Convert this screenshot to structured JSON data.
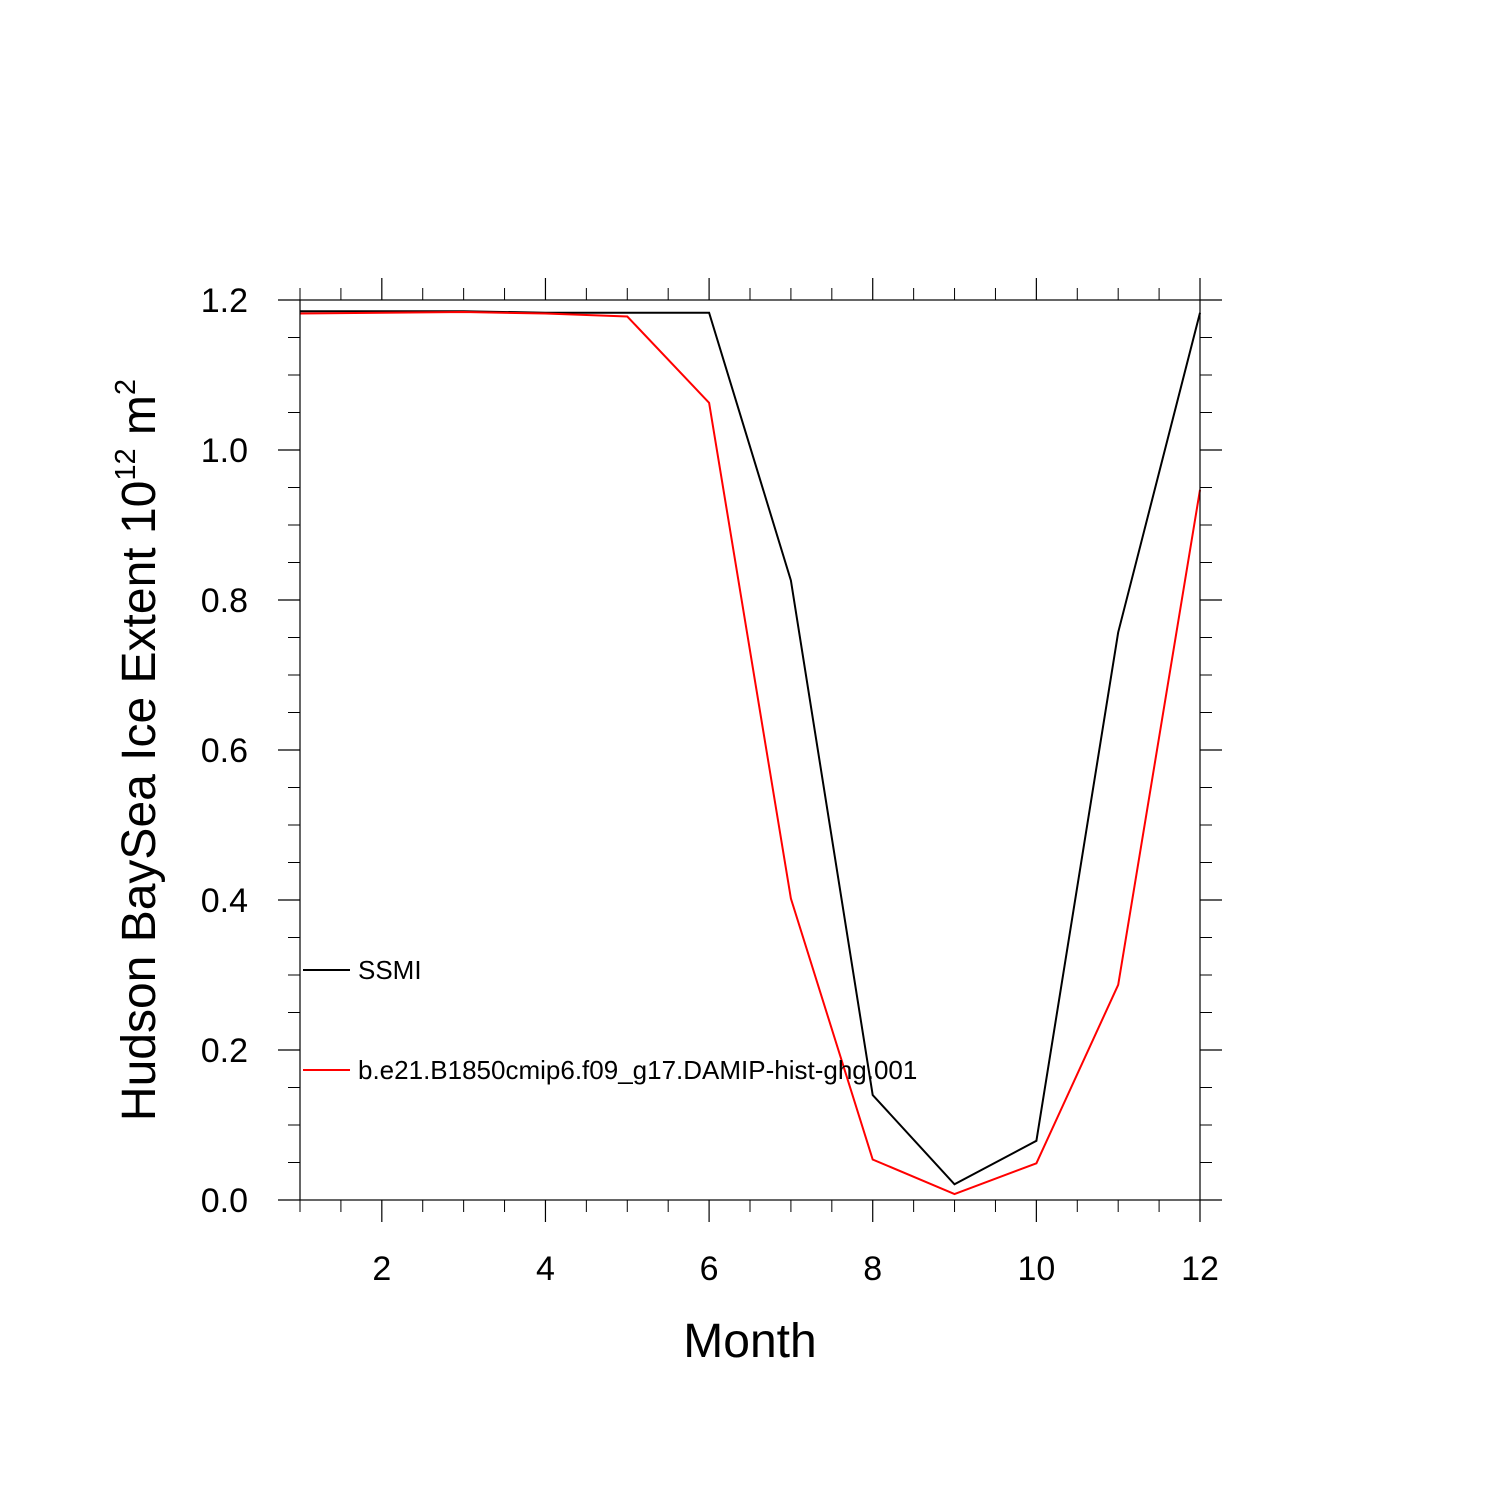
{
  "chart_data": {
    "type": "line",
    "title": "",
    "xlabel": "Month",
    "ylabel": {
      "prefix": "Hudson BaySea Ice Extent 10",
      "exponent": "12",
      "unit": " m",
      "unit_exponent": "2"
    },
    "xlim": [
      1,
      12
    ],
    "ylim": [
      0.0,
      1.2
    ],
    "x_ticks": [
      2,
      4,
      6,
      8,
      10,
      12
    ],
    "x_tick_labels": [
      "2",
      "4",
      "6",
      "8",
      "10",
      "12"
    ],
    "y_ticks": [
      0.0,
      0.2,
      0.4,
      0.6,
      0.8,
      1.0,
      1.2
    ],
    "y_tick_labels": [
      "0.0",
      "0.2",
      "0.4",
      "0.6",
      "0.8",
      "1.0",
      "1.2"
    ],
    "x": [
      1,
      2,
      3,
      4,
      5,
      6,
      7,
      8,
      9,
      10,
      11,
      12
    ],
    "series": [
      {
        "name": "SSMI",
        "color": "#000000",
        "values": [
          1.185,
          1.185,
          1.185,
          1.183,
          1.183,
          1.183,
          0.826,
          0.14,
          0.021,
          0.079,
          0.757,
          1.183
        ]
      },
      {
        "name": "b.e21.B1850cmip6.f09_g17.DAMIP-hist-ghg.001",
        "color": "#ff0000",
        "values": [
          1.182,
          1.183,
          1.184,
          1.182,
          1.178,
          1.063,
          0.402,
          0.054,
          0.008,
          0.049,
          0.287,
          0.947
        ]
      }
    ],
    "legend_location": "lower-left",
    "grid": false
  }
}
